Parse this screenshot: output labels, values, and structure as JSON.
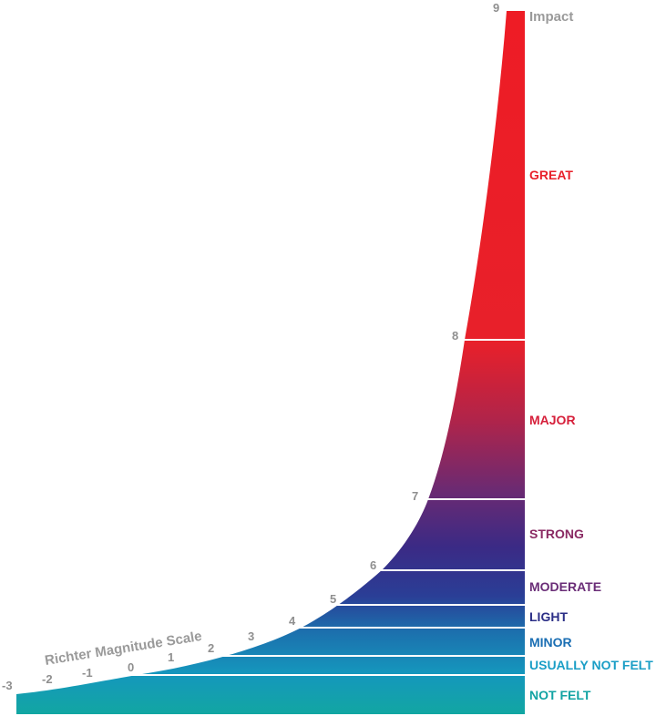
{
  "header": {
    "title": "Impact"
  },
  "axis": {
    "title": "Richter Magnitude Scale"
  },
  "ticks": [
    {
      "value": "-3",
      "label": "-3"
    },
    {
      "value": "-2",
      "label": "-2"
    },
    {
      "value": "-1",
      "label": "-1"
    },
    {
      "value": "0",
      "label": "0"
    },
    {
      "value": "1",
      "label": "1"
    },
    {
      "value": "2",
      "label": "2"
    },
    {
      "value": "3",
      "label": "3"
    },
    {
      "value": "4",
      "label": "4"
    },
    {
      "value": "5",
      "label": "5"
    },
    {
      "value": "6",
      "label": "6"
    },
    {
      "value": "7",
      "label": "7"
    },
    {
      "value": "8",
      "label": "8"
    },
    {
      "value": "9",
      "label": "9"
    }
  ],
  "categories": [
    {
      "label": "NOT FELT",
      "color": "#12a3a3"
    },
    {
      "label": "USUALLY NOT FELT",
      "color": "#1a9ec6"
    },
    {
      "label": "MINOR",
      "color": "#1a6eb3"
    },
    {
      "label": "LIGHT",
      "color": "#2b2e86"
    },
    {
      "label": "MODERATE",
      "color": "#6a2d77"
    },
    {
      "label": "STRONG",
      "color": "#8a2a63"
    },
    {
      "label": "MAJOR",
      "color": "#d61f3a"
    },
    {
      "label": "GREAT",
      "color": "#e8202a"
    }
  ]
}
